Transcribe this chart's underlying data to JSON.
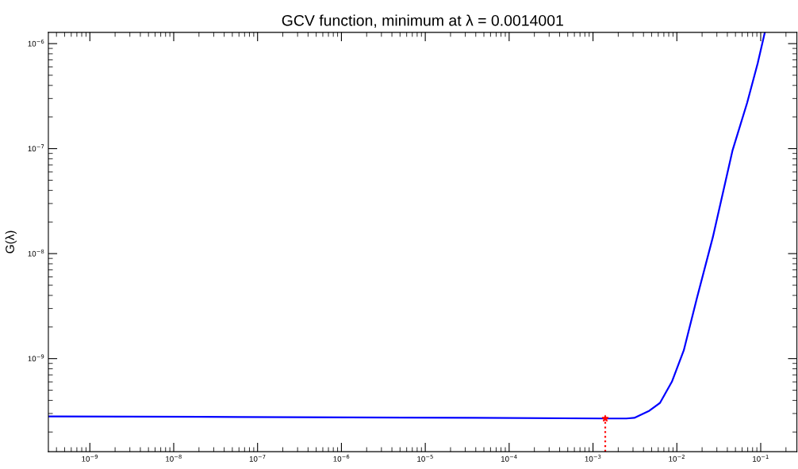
{
  "chart_data": {
    "type": "line",
    "title": "GCV function, minimum at λ = 0.0014001",
    "ylabel": "G(λ)",
    "log": "xy",
    "grid": false,
    "legend": false,
    "xlim": [
      3.2e-10,
      0.27
    ],
    "ylim": [
      1.3e-10,
      1.28e-06
    ],
    "xticks": [
      {
        "value": 1e-09,
        "label": "10$^{−9}$"
      },
      {
        "value": 1e-08,
        "label": "10$^{−8}$"
      },
      {
        "value": 1e-07,
        "label": "10$^{−7}$"
      },
      {
        "value": 1e-06,
        "label": "10$^{−6}$"
      },
      {
        "value": 1e-05,
        "label": "10$^{−5}$"
      },
      {
        "value": 0.0001,
        "label": "10$^{−4}$"
      },
      {
        "value": 0.001,
        "label": "10$^{−3}$"
      },
      {
        "value": 0.01,
        "label": "10$^{−2}$"
      },
      {
        "value": 0.1,
        "label": "10$^{−1}$"
      }
    ],
    "yticks": [
      {
        "value": 1e-09,
        "label": "10$^{−9}$"
      },
      {
        "value": 1e-08,
        "label": "10$^{−8}$"
      },
      {
        "value": 1e-07,
        "label": "10$^{−7}$"
      },
      {
        "value": 1e-06,
        "label": "10$^{−6}$"
      }
    ],
    "series": [
      {
        "color": "#0000ff",
        "line_style": "solid",
        "marker": "none",
        "x": [
          3.21e-10,
          5.81e-08,
          3.95e-05,
          0.0014001,
          0.0025,
          0.00311,
          0.0047,
          0.0063,
          0.00873,
          0.0121,
          0.0174,
          0.0269,
          0.0462,
          0.0689,
          0.092,
          0.112
        ],
        "values": [
          2.82e-10,
          2.78e-10,
          2.73e-10,
          2.69e-10,
          2.69e-10,
          2.73e-10,
          3.19e-10,
          3.79e-10,
          6.03e-10,
          1.2e-09,
          3.81e-09,
          1.44e-08,
          9.66e-08,
          2.73e-07,
          6.49e-07,
          1.28e-06
        ]
      },
      {
        "type": "line",
        "color": "#ff0000",
        "line_style": "dotted",
        "marker": "none",
        "x": [
          0.0014001,
          0.0014001
        ],
        "values": [
          1.3e-10,
          2.69e-10
        ]
      },
      {
        "type": "scatter",
        "color": "#ff0000",
        "marker": "star",
        "x": [
          0.0014001
        ],
        "values": [
          2.69e-10
        ]
      }
    ]
  }
}
